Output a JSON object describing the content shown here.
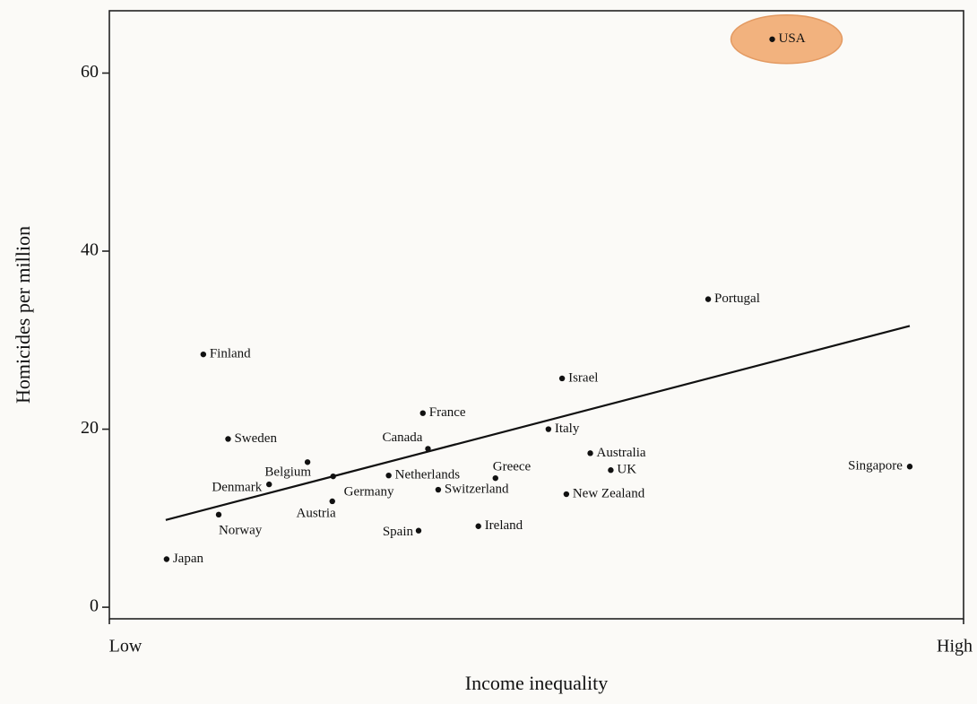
{
  "chart_data": {
    "type": "scatter",
    "ylabel": "Homicides per million",
    "xlabel": "Income inequality",
    "labels": [
      "USA",
      "Portugal",
      "Finland",
      "Israel",
      "France",
      "Italy",
      "Sweden",
      "Canada",
      "Australia",
      "Greece",
      "Netherlands",
      "Belgium",
      "UK",
      "Singapore",
      "Denmark",
      "Germany",
      "Switzerland",
      "New Zealand",
      "Austria",
      "Norway",
      "Ireland",
      "Spain",
      "Japan"
    ],
    "x": [
      77.6,
      70.1,
      11.0,
      53.0,
      36.7,
      51.4,
      13.9,
      37.3,
      56.3,
      45.2,
      32.7,
      23.2,
      58.7,
      93.7,
      18.7,
      26.2,
      38.5,
      53.5,
      26.1,
      12.8,
      43.2,
      36.2,
      6.7
    ],
    "values": [
      63.8,
      34.6,
      28.4,
      25.7,
      21.8,
      20.0,
      18.9,
      17.8,
      17.3,
      14.5,
      14.8,
      16.3,
      15.4,
      15.8,
      13.8,
      14.7,
      13.2,
      12.7,
      11.9,
      10.4,
      9.1,
      8.6,
      5.4
    ],
    "color": "#111111",
    "trend": {
      "x": [
        6.6,
        93.7
      ],
      "values": [
        9.8,
        31.6
      ],
      "color": "#111111"
    },
    "highlight": {
      "index": 0,
      "color": "#f2b27e"
    },
    "xlim": [
      0,
      100
    ],
    "xticks": [
      {
        "value": 0,
        "label": "Low"
      },
      {
        "value": 100,
        "label": "High"
      }
    ],
    "ylim": [
      -1.3,
      67
    ],
    "yticks": [
      0,
      20,
      40,
      60
    ]
  }
}
